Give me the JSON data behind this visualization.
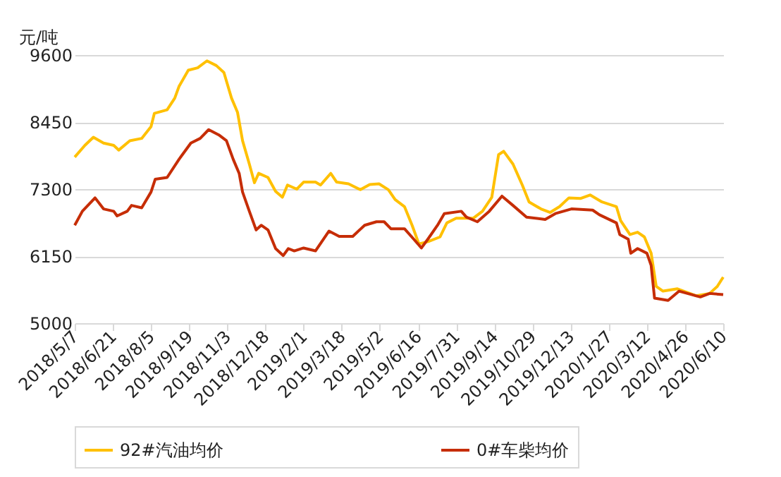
{
  "chart_data": {
    "type": "line",
    "ylabel": "元/吨",
    "ylim": [
      5000,
      9600
    ],
    "yticks": [
      5000,
      6150,
      7300,
      8450,
      9600
    ],
    "xlim": [
      "2018-05-07",
      "2020-06-10"
    ],
    "xticks": [
      {
        "value": "2018-05-07",
        "label": "2018/5/7"
      },
      {
        "value": "2018-06-21",
        "label": "2018/6/21"
      },
      {
        "value": "2018-08-05",
        "label": "2018/8/5"
      },
      {
        "value": "2018-09-19",
        "label": "2018/9/19"
      },
      {
        "value": "2018-11-03",
        "label": "2018/11/3"
      },
      {
        "value": "2018-12-18",
        "label": "2018/12/18"
      },
      {
        "value": "2019-02-01",
        "label": "2019/2/1"
      },
      {
        "value": "2019-03-18",
        "label": "2019/3/18"
      },
      {
        "value": "2019-05-02",
        "label": "2019/5/2"
      },
      {
        "value": "2019-06-16",
        "label": "2019/6/16"
      },
      {
        "value": "2019-07-31",
        "label": "2019/7/31"
      },
      {
        "value": "2019-09-14",
        "label": "2019/9/14"
      },
      {
        "value": "2019-10-29",
        "label": "2019/10/29"
      },
      {
        "value": "2019-12-13",
        "label": "2019/12/13"
      },
      {
        "value": "2020-01-27",
        "label": "2020/1/27"
      },
      {
        "value": "2020-03-12",
        "label": "2020/3/12"
      },
      {
        "value": "2020-04-26",
        "label": "2020/4/26"
      },
      {
        "value": "2020-06-10",
        "label": "2020/6/10"
      }
    ],
    "grid": "y",
    "legend": "bottom",
    "marker": "none",
    "line_style": "solid",
    "series": [
      {
        "name": "92#汽油均价",
        "color": "#ffc000",
        "x": [
          "2018-05-07",
          "2018-05-19",
          "2018-05-29",
          "2018-06-10",
          "2018-06-22",
          "2018-06-28",
          "2018-07-11",
          "2018-07-25",
          "2018-08-05",
          "2018-08-09",
          "2018-08-24",
          "2018-09-02",
          "2018-09-07",
          "2018-09-18",
          "2018-09-29",
          "2018-10-10",
          "2018-10-21",
          "2018-10-30",
          "2018-11-08",
          "2018-11-15",
          "2018-11-21",
          "2018-11-29",
          "2018-12-05",
          "2018-12-10",
          "2018-12-21",
          "2018-12-30",
          "2019-01-07",
          "2019-01-13",
          "2019-01-24",
          "2019-02-01",
          "2019-02-15",
          "2019-02-21",
          "2019-03-05",
          "2019-03-12",
          "2019-03-26",
          "2019-04-09",
          "2019-04-20",
          "2019-05-01",
          "2019-05-12",
          "2019-05-20",
          "2019-05-31",
          "2019-06-09",
          "2019-06-17",
          "2019-06-28",
          "2019-07-12",
          "2019-07-20",
          "2019-07-31",
          "2019-08-20",
          "2019-08-31",
          "2019-09-11",
          "2019-09-19",
          "2019-09-25",
          "2019-10-06",
          "2019-10-17",
          "2019-10-25",
          "2019-11-08",
          "2019-11-19",
          "2019-11-30",
          "2019-12-11",
          "2019-12-25",
          "2020-01-05",
          "2020-01-19",
          "2020-02-05",
          "2020-02-10",
          "2020-02-21",
          "2020-03-01",
          "2020-03-09",
          "2020-03-17",
          "2020-03-23",
          "2020-03-31",
          "2020-04-17",
          "2020-05-09",
          "2020-05-25",
          "2020-06-03",
          "2020-06-10"
        ],
        "values": [
          7850,
          8050,
          8190,
          8090,
          8050,
          7970,
          8130,
          8170,
          8370,
          8600,
          8660,
          8860,
          9060,
          9340,
          9380,
          9500,
          9420,
          9300,
          8860,
          8620,
          8130,
          7730,
          7410,
          7570,
          7500,
          7260,
          7160,
          7370,
          7300,
          7420,
          7420,
          7370,
          7570,
          7420,
          7390,
          7290,
          7380,
          7390,
          7290,
          7120,
          7000,
          6680,
          6360,
          6400,
          6480,
          6720,
          6800,
          6800,
          6920,
          7160,
          7890,
          7950,
          7730,
          7370,
          7080,
          6960,
          6900,
          7000,
          7150,
          7140,
          7200,
          7080,
          7000,
          6760,
          6520,
          6560,
          6480,
          6200,
          5630,
          5550,
          5590,
          5470,
          5510,
          5630,
          5790
        ]
      },
      {
        "name": "0#车柴均价",
        "color": "#c62d06",
        "x": [
          "2018-05-07",
          "2018-05-16",
          "2018-05-31",
          "2018-06-10",
          "2018-06-22",
          "2018-06-26",
          "2018-07-08",
          "2018-07-13",
          "2018-07-25",
          "2018-08-05",
          "2018-08-10",
          "2018-08-24",
          "2018-09-07",
          "2018-09-21",
          "2018-10-02",
          "2018-10-12",
          "2018-10-24",
          "2018-11-02",
          "2018-11-10",
          "2018-11-17",
          "2018-11-21",
          "2018-11-29",
          "2018-12-07",
          "2018-12-13",
          "2018-12-21",
          "2018-12-30",
          "2019-01-08",
          "2019-01-14",
          "2019-01-21",
          "2019-02-01",
          "2019-02-15",
          "2019-03-03",
          "2019-03-15",
          "2019-03-31",
          "2019-04-14",
          "2019-04-28",
          "2019-05-07",
          "2019-05-15",
          "2019-05-31",
          "2019-06-11",
          "2019-06-20",
          "2019-06-28",
          "2019-07-09",
          "2019-07-17",
          "2019-08-06",
          "2019-08-12",
          "2019-08-25",
          "2019-09-08",
          "2019-09-23",
          "2019-10-06",
          "2019-10-22",
          "2019-11-13",
          "2019-11-25",
          "2019-12-14",
          "2020-01-08",
          "2020-01-16",
          "2020-02-05",
          "2020-02-09",
          "2020-02-19",
          "2020-02-22",
          "2020-03-01",
          "2020-03-12",
          "2020-03-17",
          "2020-03-21",
          "2020-04-06",
          "2020-04-19",
          "2020-05-14",
          "2020-05-25",
          "2020-06-10"
        ],
        "values": [
          6680,
          6920,
          7150,
          6960,
          6920,
          6840,
          6920,
          7020,
          6980,
          7250,
          7470,
          7500,
          7810,
          8090,
          8170,
          8320,
          8230,
          8130,
          7810,
          7570,
          7250,
          6920,
          6600,
          6680,
          6600,
          6280,
          6160,
          6280,
          6240,
          6290,
          6240,
          6580,
          6490,
          6490,
          6680,
          6740,
          6740,
          6620,
          6620,
          6440,
          6290,
          6450,
          6680,
          6880,
          6920,
          6820,
          6740,
          6920,
          7180,
          7020,
          6820,
          6780,
          6880,
          6960,
          6940,
          6860,
          6720,
          6520,
          6440,
          6200,
          6280,
          6200,
          5990,
          5430,
          5390,
          5550,
          5450,
          5510,
          5490
        ]
      }
    ]
  }
}
